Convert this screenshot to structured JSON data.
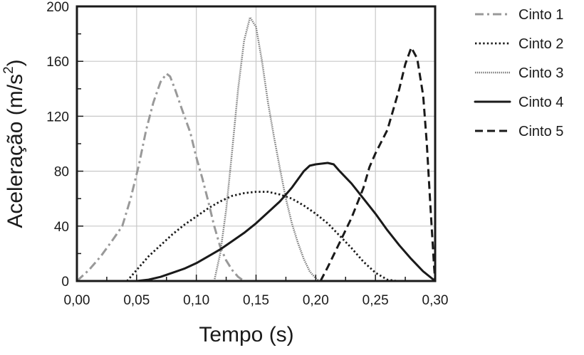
{
  "chart_data": {
    "type": "line",
    "xlabel": "Tempo (s)",
    "ylabel": "Aceleração (m/s",
    "ylabel_sup": "2",
    "ylabel_close": ")",
    "xlim": [
      0,
      0.3
    ],
    "ylim": [
      0,
      200
    ],
    "x_ticks": [
      0,
      0.05,
      0.1,
      0.15,
      0.2,
      0.25,
      0.3
    ],
    "x_tick_labels": [
      "0,00",
      "0,05",
      "0,10",
      "0,15",
      "0,20",
      "0,25",
      "0,30"
    ],
    "y_ticks": [
      0,
      40,
      80,
      120,
      160,
      200
    ],
    "y_tick_labels": [
      "0",
      "40",
      "80",
      "120",
      "160",
      "200"
    ],
    "grid": true,
    "legend_position": "right",
    "series": [
      {
        "name": "Cinto 1",
        "color": "#999999",
        "style": "dashdot",
        "points": [
          [
            0.0,
            0
          ],
          [
            0.01,
            8
          ],
          [
            0.02,
            18
          ],
          [
            0.03,
            30
          ],
          [
            0.038,
            40
          ],
          [
            0.045,
            60
          ],
          [
            0.052,
            85
          ],
          [
            0.058,
            110
          ],
          [
            0.064,
            130
          ],
          [
            0.07,
            145
          ],
          [
            0.075,
            151
          ],
          [
            0.078,
            149
          ],
          [
            0.082,
            140
          ],
          [
            0.088,
            125
          ],
          [
            0.095,
            108
          ],
          [
            0.1,
            90
          ],
          [
            0.105,
            75
          ],
          [
            0.11,
            58
          ],
          [
            0.115,
            40
          ],
          [
            0.12,
            25
          ],
          [
            0.125,
            15
          ],
          [
            0.13,
            8
          ],
          [
            0.135,
            3
          ],
          [
            0.14,
            0
          ]
        ]
      },
      {
        "name": "Cinto 2",
        "color": "#1a1a1a",
        "style": "dotted",
        "points": [
          [
            0.042,
            0
          ],
          [
            0.05,
            8
          ],
          [
            0.06,
            18
          ],
          [
            0.07,
            26
          ],
          [
            0.08,
            34
          ],
          [
            0.09,
            41
          ],
          [
            0.1,
            47
          ],
          [
            0.11,
            53
          ],
          [
            0.12,
            58
          ],
          [
            0.13,
            62
          ],
          [
            0.14,
            64
          ],
          [
            0.15,
            65
          ],
          [
            0.16,
            65
          ],
          [
            0.17,
            63
          ],
          [
            0.18,
            60
          ],
          [
            0.19,
            55
          ],
          [
            0.2,
            49
          ],
          [
            0.21,
            42
          ],
          [
            0.22,
            33
          ],
          [
            0.23,
            24
          ],
          [
            0.24,
            14
          ],
          [
            0.25,
            6
          ],
          [
            0.26,
            1
          ],
          [
            0.268,
            0
          ]
        ]
      },
      {
        "name": "Cinto 3",
        "color": "#777777",
        "style": "densedot",
        "points": [
          [
            0.115,
            0
          ],
          [
            0.12,
            20
          ],
          [
            0.125,
            52
          ],
          [
            0.13,
            95
          ],
          [
            0.135,
            140
          ],
          [
            0.14,
            175
          ],
          [
            0.145,
            192
          ],
          [
            0.15,
            185
          ],
          [
            0.155,
            160
          ],
          [
            0.16,
            130
          ],
          [
            0.165,
            105
          ],
          [
            0.17,
            82
          ],
          [
            0.175,
            60
          ],
          [
            0.18,
            42
          ],
          [
            0.185,
            28
          ],
          [
            0.19,
            16
          ],
          [
            0.195,
            7
          ],
          [
            0.2,
            2
          ],
          [
            0.203,
            0
          ]
        ]
      },
      {
        "name": "Cinto 4",
        "color": "#1a1a1a",
        "style": "solid",
        "points": [
          [
            0.05,
            0
          ],
          [
            0.06,
            1
          ],
          [
            0.07,
            3
          ],
          [
            0.08,
            6
          ],
          [
            0.09,
            9
          ],
          [
            0.1,
            13
          ],
          [
            0.11,
            18
          ],
          [
            0.12,
            23
          ],
          [
            0.13,
            29
          ],
          [
            0.14,
            35
          ],
          [
            0.15,
            42
          ],
          [
            0.16,
            50
          ],
          [
            0.17,
            58
          ],
          [
            0.18,
            68
          ],
          [
            0.19,
            80
          ],
          [
            0.195,
            84
          ],
          [
            0.2,
            85
          ],
          [
            0.21,
            86
          ],
          [
            0.215,
            85
          ],
          [
            0.22,
            80
          ],
          [
            0.23,
            71
          ],
          [
            0.24,
            60
          ],
          [
            0.25,
            49
          ],
          [
            0.26,
            37
          ],
          [
            0.27,
            26
          ],
          [
            0.28,
            16
          ],
          [
            0.29,
            7
          ],
          [
            0.3,
            0
          ]
        ]
      },
      {
        "name": "Cinto 5",
        "color": "#1a1a1a",
        "style": "dashed",
        "points": [
          [
            0.204,
            0
          ],
          [
            0.21,
            10
          ],
          [
            0.22,
            28
          ],
          [
            0.23,
            46
          ],
          [
            0.24,
            68
          ],
          [
            0.245,
            83
          ],
          [
            0.25,
            93
          ],
          [
            0.26,
            110
          ],
          [
            0.265,
            125
          ],
          [
            0.27,
            140
          ],
          [
            0.275,
            158
          ],
          [
            0.28,
            170
          ],
          [
            0.285,
            162
          ],
          [
            0.29,
            135
          ],
          [
            0.293,
            100
          ],
          [
            0.296,
            55
          ],
          [
            0.299,
            12
          ],
          [
            0.3,
            0
          ]
        ]
      }
    ]
  }
}
